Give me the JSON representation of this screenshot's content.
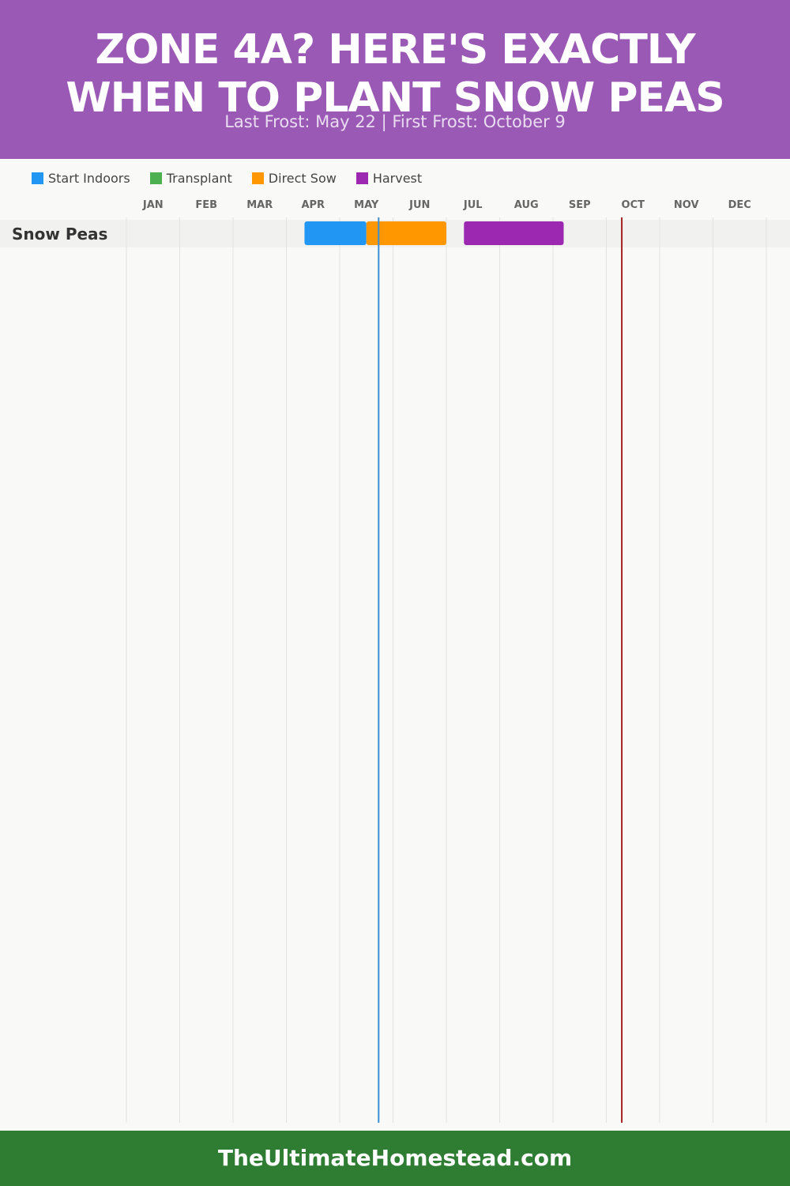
{
  "header": {
    "title_line1": "ZONE 4A? HERE'S EXACTLY",
    "title_line2": "WHEN TO PLANT SNOW PEAS",
    "subtitle": "Last Frost: May 22 | First Frost: October 9",
    "background": "#9b59b6"
  },
  "legend": [
    {
      "label": "Start Indoors",
      "color": "#2196f3"
    },
    {
      "label": "Transplant",
      "color": "#4caf50"
    },
    {
      "label": "Direct Sow",
      "color": "#ff9800"
    },
    {
      "label": "Harvest",
      "color": "#9c27b0"
    }
  ],
  "chart_data": {
    "type": "gantt",
    "months": [
      "JAN",
      "FEB",
      "MAR",
      "APR",
      "MAY",
      "JUN",
      "JUL",
      "AUG",
      "SEP",
      "OCT",
      "NOV",
      "DEC"
    ],
    "rows": [
      {
        "name": "Snow Peas",
        "bars": [
          {
            "phase": "Start Indoors",
            "start": 3.34,
            "end": 4.5,
            "color": "#2196f3"
          },
          {
            "phase": "Direct Sow",
            "start": 4.5,
            "end": 6.0,
            "color": "#ff9800"
          },
          {
            "phase": "Harvest",
            "start": 6.33,
            "end": 8.2,
            "color": "#9c27b0"
          }
        ]
      }
    ],
    "frost_lines": [
      {
        "label": "Last Frost",
        "value": 4.73,
        "color": "#3a8fd8"
      },
      {
        "label": "First Frost",
        "value": 9.29,
        "color": "#a32121"
      }
    ],
    "grid": true
  },
  "footer": {
    "text": "TheUltimateHomestead.com",
    "background": "#2e7d32"
  }
}
